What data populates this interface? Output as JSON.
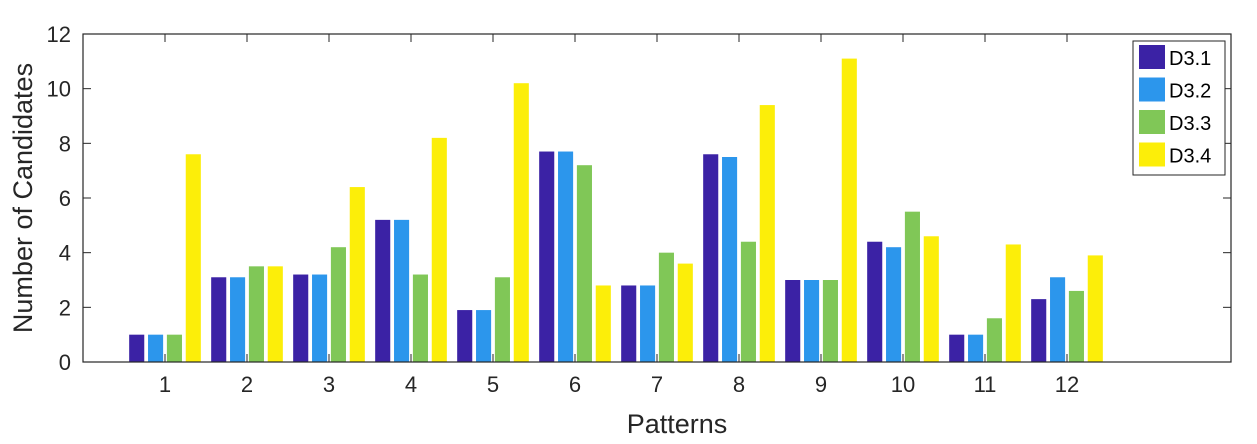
{
  "chart_data": {
    "type": "bar",
    "title": "",
    "xlabel": "Patterns",
    "ylabel": "Number of Candidates",
    "categories": [
      "1",
      "2",
      "3",
      "4",
      "5",
      "6",
      "7",
      "8",
      "9",
      "10",
      "11",
      "12"
    ],
    "xlim": [
      0,
      14
    ],
    "ylim": [
      0,
      12
    ],
    "yticks": [
      "0",
      "2",
      "4",
      "6",
      "8",
      "10",
      "12"
    ],
    "grid": false,
    "legend_position": "top-right",
    "series": [
      {
        "name": "D3.1",
        "color": "#3b22a5",
        "values": [
          1,
          3.1,
          3.2,
          5.2,
          1.9,
          7.7,
          2.8,
          7.6,
          3.0,
          4.4,
          1.0,
          2.3
        ]
      },
      {
        "name": "D3.2",
        "color": "#2c96ec",
        "values": [
          1,
          3.1,
          3.2,
          5.2,
          1.9,
          7.7,
          2.8,
          7.5,
          3.0,
          4.2,
          1.0,
          3.1
        ]
      },
      {
        "name": "D3.3",
        "color": "#80c757",
        "values": [
          1,
          3.5,
          4.2,
          3.2,
          3.1,
          7.2,
          4.0,
          4.4,
          3.0,
          5.5,
          1.6,
          2.6
        ]
      },
      {
        "name": "D3.4",
        "color": "#fcee09",
        "values": [
          7.6,
          3.5,
          6.4,
          8.2,
          10.2,
          2.8,
          3.6,
          9.4,
          11.1,
          4.6,
          4.3,
          3.9
        ]
      }
    ]
  }
}
